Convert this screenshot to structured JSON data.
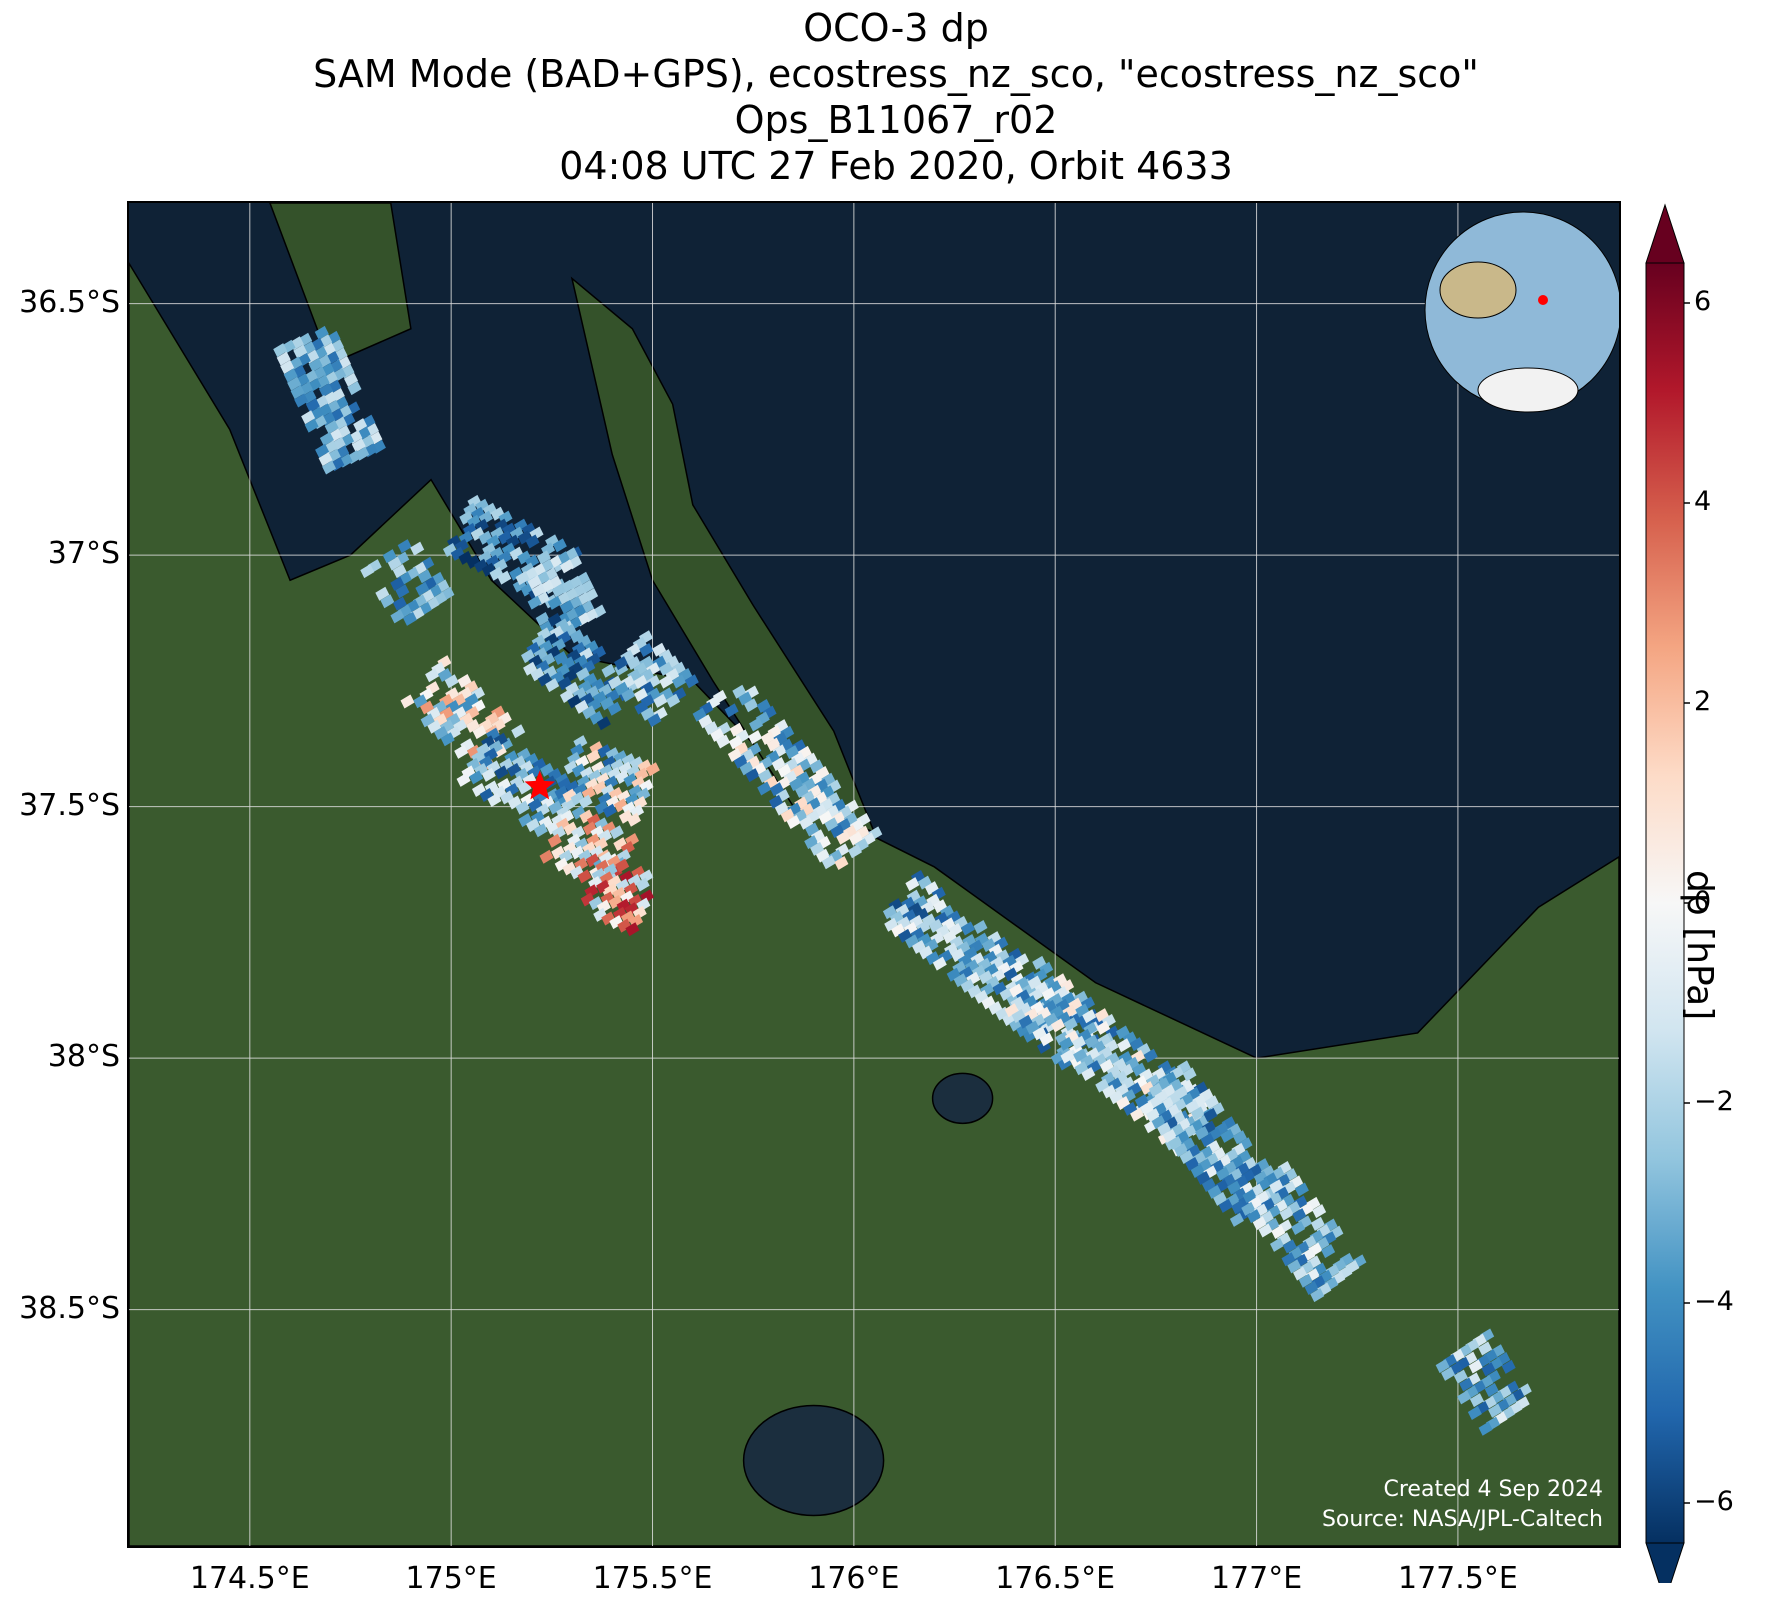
{
  "title": {
    "line1": "OCO-3 dp",
    "line2": "SAM Mode (BAD+GPS), ecostress_nz_sco, \"ecostress_nz_sco\"",
    "line3": "Ops_B11067_r02",
    "line4": "04:08 UTC 27 Feb 2020, Orbit 4633"
  },
  "map": {
    "extent": {
      "lon_min": 174.2,
      "lon_max": 177.9,
      "lat_min": -38.97,
      "lat_max": -36.3
    },
    "lat_ticks": [
      {
        "value": -36.5,
        "label": "36.5°S"
      },
      {
        "value": -37.0,
        "label": "37°S"
      },
      {
        "value": -37.5,
        "label": "37.5°S"
      },
      {
        "value": -38.0,
        "label": "38°S"
      },
      {
        "value": -38.5,
        "label": "38.5°S"
      }
    ],
    "lon_ticks": [
      {
        "value": 174.5,
        "label": "174.5°E"
      },
      {
        "value": 175.0,
        "label": "175°E"
      },
      {
        "value": 175.5,
        "label": "175.5°E"
      },
      {
        "value": 176.0,
        "label": "176°E"
      },
      {
        "value": 176.5,
        "label": "176.5°E"
      },
      {
        "value": 177.0,
        "label": "177°E"
      },
      {
        "value": 177.5,
        "label": "177.5°E"
      }
    ],
    "target_marker": {
      "lon": 175.22,
      "lat": -37.46,
      "color": "#ff0000",
      "symbol": "star"
    },
    "credit_line1": "Created 4 Sep 2024",
    "credit_line2": "Source: NASA/JPL-Caltech",
    "colors": {
      "ocean": "#0f2236",
      "land": "#3a5a2e",
      "grid": "#dddddd"
    }
  },
  "soundings": [
    {
      "lon0": 174.62,
      "lat0": -36.57,
      "lon1": 174.75,
      "lat1": -36.82,
      "mean": -3.0,
      "spread": 2.0
    },
    {
      "lon0": 174.83,
      "lat0": -37.0,
      "lon1": 174.93,
      "lat1": -37.12,
      "mean": -3.5,
      "spread": 2.0
    },
    {
      "lon0": 175.01,
      "lat0": -36.94,
      "lon1": 175.28,
      "lat1": -37.05,
      "mean": -4.0,
      "spread": 2.5
    },
    {
      "lon0": 175.22,
      "lat0": -37.02,
      "lon1": 175.3,
      "lat1": -37.15,
      "mean": -2.5,
      "spread": 2.0
    },
    {
      "lon0": 175.2,
      "lat0": -37.17,
      "lon1": 175.42,
      "lat1": -37.3,
      "mean": -3.8,
      "spread": 2.5
    },
    {
      "lon0": 175.42,
      "lat0": -37.2,
      "lon1": 175.55,
      "lat1": -37.3,
      "mean": -3.0,
      "spread": 2.5
    },
    {
      "lon0": 174.92,
      "lat0": -37.25,
      "lon1": 175.12,
      "lat1": -37.4,
      "mean": -0.5,
      "spread": 3.5
    },
    {
      "lon0": 175.05,
      "lat0": -37.4,
      "lon1": 175.28,
      "lat1": -37.52,
      "mean": -3.0,
      "spread": 3.0
    },
    {
      "lon0": 175.28,
      "lat0": -37.42,
      "lon1": 175.48,
      "lat1": -37.48,
      "mean": -1.5,
      "spread": 4.0
    },
    {
      "lon0": 175.25,
      "lat0": -37.55,
      "lon1": 175.42,
      "lat1": -37.62,
      "mean": 0.5,
      "spread": 4.0
    },
    {
      "lon0": 175.34,
      "lat0": -37.65,
      "lon1": 175.48,
      "lat1": -37.7,
      "mean": 1.5,
      "spread": 4.0
    },
    {
      "lon0": 175.65,
      "lat0": -37.28,
      "lon1": 176.0,
      "lat1": -37.6,
      "mean": -2.0,
      "spread": 3.5
    },
    {
      "lon0": 176.1,
      "lat0": -37.68,
      "lon1": 176.6,
      "lat1": -38.0,
      "mean": -2.8,
      "spread": 3.0
    },
    {
      "lon0": 176.4,
      "lat0": -37.85,
      "lon1": 176.85,
      "lat1": -38.15,
      "mean": -2.0,
      "spread": 3.0
    },
    {
      "lon0": 176.75,
      "lat0": -38.05,
      "lon1": 177.0,
      "lat1": -38.3,
      "mean": -3.0,
      "spread": 2.5
    },
    {
      "lon0": 177.0,
      "lat0": -38.25,
      "lon1": 177.2,
      "lat1": -38.45,
      "mean": -2.5,
      "spread": 2.5
    },
    {
      "lon0": 177.5,
      "lat0": -38.58,
      "lon1": 177.62,
      "lat1": -38.72,
      "mean": -3.0,
      "spread": 2.5
    }
  ],
  "colorbar": {
    "label": "dp [hPa]",
    "min": -6.4,
    "max": 6.4,
    "ticks": [
      {
        "value": 6,
        "label": "6"
      },
      {
        "value": 4,
        "label": "4"
      },
      {
        "value": 2,
        "label": "2"
      },
      {
        "value": 0,
        "label": "0"
      },
      {
        "value": -2,
        "label": "−2"
      },
      {
        "value": -4,
        "label": "−4"
      },
      {
        "value": -6,
        "label": "−6"
      }
    ],
    "colormap": "RdBu_r",
    "extend": "both"
  },
  "inset_globe": {
    "description_marker_color": "#ff0000"
  }
}
